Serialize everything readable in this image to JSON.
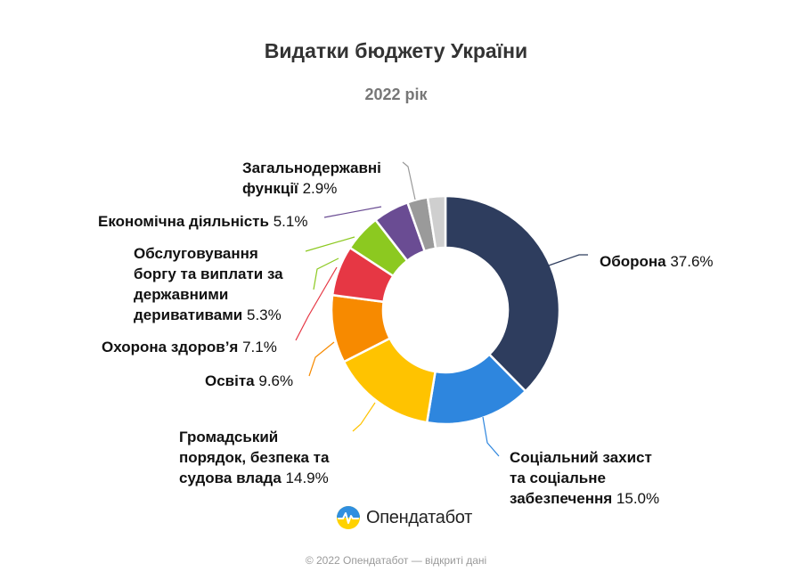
{
  "title": "Видатки бюджету України",
  "subtitle": "2022 рік",
  "chart_data": {
    "type": "pie",
    "title": "Видатки бюджету України",
    "subtitle": "2022 рік",
    "donut": true,
    "unit": "%",
    "slices": [
      {
        "name": "Оборона",
        "value": 37.6,
        "value_label": "37.6%",
        "color": "#2e3d5e"
      },
      {
        "name": "Соціальний захист та соціальне забезпечення",
        "value": 15.0,
        "value_label": "15.0%",
        "color": "#2e86de"
      },
      {
        "name": "Громадський порядок, безпека та судова влада",
        "value": 14.9,
        "value_label": "14.9%",
        "color": "#ffc300"
      },
      {
        "name": "Освіта",
        "value": 9.6,
        "value_label": "9.6%",
        "color": "#f78a00"
      },
      {
        "name": "Охорона здоров’я",
        "value": 7.1,
        "value_label": "7.1%",
        "color": "#e63744"
      },
      {
        "name": "Обслуговування боргу та виплати за державними деривативами",
        "value": 5.3,
        "value_label": "5.3%",
        "color": "#8cc920"
      },
      {
        "name": "Економічна діяльність",
        "value": 5.1,
        "value_label": "5.1%",
        "color": "#6a4c93"
      },
      {
        "name": "Загальнодержавні функції",
        "value": 2.9,
        "value_label": "2.9%",
        "color": "#9a9a9a"
      },
      {
        "name": "",
        "value": 2.5,
        "value_label": "",
        "color": "#cfcfcf"
      }
    ]
  },
  "labels": {
    "oborona": {
      "l1b": "Оборона",
      "val": "37.6%"
    },
    "social": {
      "l1b": "Соціальний захист",
      "l2b": "та соціальне",
      "l3b": "забезпечення",
      "val": "15.0%"
    },
    "order": {
      "l1b": "Громадський",
      "l2b": "порядок, безпека та",
      "l3b": "судова влада",
      "val": "14.9%"
    },
    "osvita": {
      "l1b": "Освіта",
      "val": "9.6%"
    },
    "health": {
      "l1b": "Охорона здоров’я",
      "val": "7.1%"
    },
    "debt": {
      "l1b": "Обслуговування",
      "l2b": "боргу та виплати за",
      "l3b": "державними",
      "l4b": "деривативами",
      "val": "5.3%"
    },
    "econ": {
      "l1b": "Економічна діяльність",
      "val": "5.1%"
    },
    "general": {
      "l1b": "Загальнодержавні",
      "l2b": "функції",
      "val": "2.9%"
    }
  },
  "logo": {
    "text": "Опендатабот"
  },
  "footer": "© 2022 Опендатабот — відкриті дані"
}
